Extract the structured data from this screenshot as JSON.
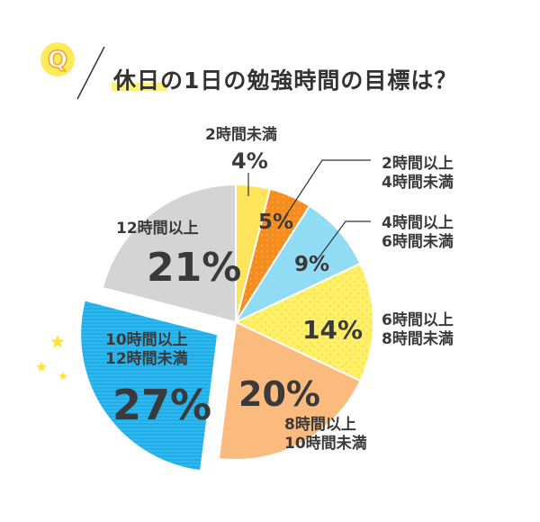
{
  "header": {
    "badge": "Q",
    "title": "休日の1日の勉強時間の目標は？"
  },
  "colors": {
    "accent_yellow": "#ffe95c",
    "badge_orange": "#f5a623",
    "slice_under2": "#ffe45c",
    "slice_2to4": "#f58c1f",
    "slice_4to6": "#8fdcf4",
    "slice_6to8": "#fff06a",
    "slice_8to10": "#fcbb7e",
    "slice_10to12": "#1eaee9",
    "slice_12plus": "#d4d4d4",
    "star": "#ffe33a"
  },
  "chart_data": {
    "type": "pie",
    "title": "休日の1日の勉強時間の目標は？",
    "unit": "%",
    "slices": [
      {
        "label": "2時間未満",
        "value": 4,
        "display": "4%"
      },
      {
        "label": "2時間以上\n4時間未満",
        "value": 5,
        "display": "5%"
      },
      {
        "label": "4時間以上\n6時間未満",
        "value": 9,
        "display": "9%"
      },
      {
        "label": "6時間以上\n8時間未満",
        "value": 14,
        "display": "14%"
      },
      {
        "label": "8時間以上\n10時間未満",
        "value": 20,
        "display": "20%"
      },
      {
        "label": "10時間以上\n12時間未満",
        "value": 27,
        "display": "27%",
        "exploded": true
      },
      {
        "label": "12時間以上",
        "value": 21,
        "display": "21%"
      }
    ]
  }
}
